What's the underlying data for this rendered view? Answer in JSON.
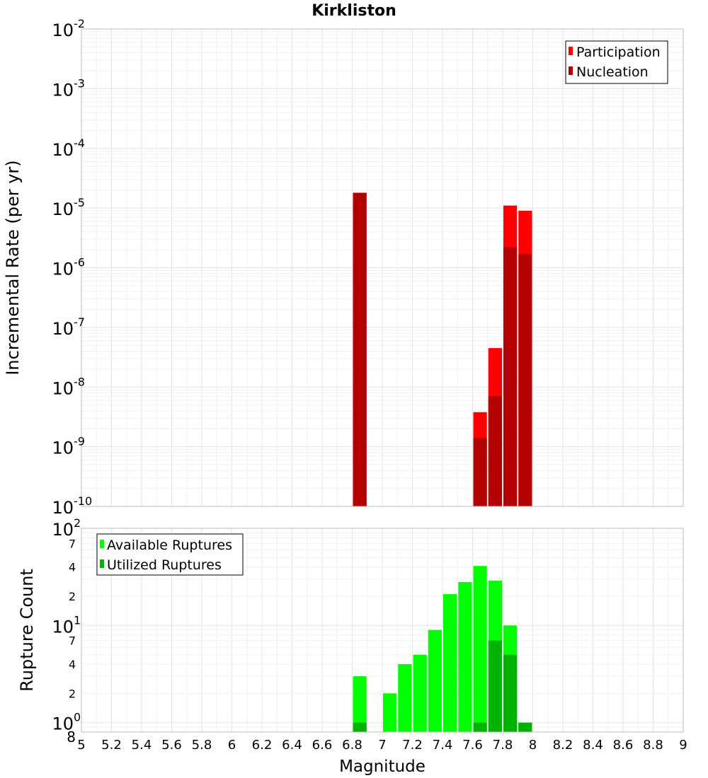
{
  "title": "Kirkliston",
  "colors": {
    "participation": "#ff0000",
    "nucleation": "#b30000",
    "available": "#00ff00",
    "utilized": "#00b300",
    "grid_major": "#e3e3e3",
    "grid_minor": "#f0f0f0",
    "frame": "#bbbbbb"
  },
  "chart_data": [
    {
      "type": "bar",
      "title": "Kirkliston",
      "xlabel": "Magnitude",
      "ylabel": "Incremental Rate (per yr)",
      "y_scale": "log",
      "xlim": [
        5,
        9
      ],
      "ylim": [
        1e-10,
        0.01
      ],
      "y_ticks": [
        {
          "base": "10",
          "exp": "-10"
        },
        {
          "base": "10",
          "exp": "-9"
        },
        {
          "base": "10",
          "exp": "-8"
        },
        {
          "base": "10",
          "exp": "-7"
        },
        {
          "base": "10",
          "exp": "-6"
        },
        {
          "base": "10",
          "exp": "-5"
        },
        {
          "base": "10",
          "exp": "-4"
        },
        {
          "base": "10",
          "exp": "-3"
        },
        {
          "base": "10",
          "exp": "-2"
        }
      ],
      "grid": true,
      "legend_position": "top-right",
      "series": [
        {
          "name": "Participation",
          "x": [
            6.85,
            7.65,
            7.75,
            7.85,
            7.95
          ],
          "values": [
            1.8e-05,
            3.8e-09,
            4.5e-08,
            1.1e-05,
            9e-06
          ]
        },
        {
          "name": "Nucleation",
          "x": [
            6.85,
            7.65,
            7.75,
            7.85,
            7.95
          ],
          "values": [
            1.8e-05,
            1.4e-09,
            7e-09,
            2.2e-06,
            1.7e-06
          ]
        }
      ]
    },
    {
      "type": "bar",
      "xlabel": "Magnitude",
      "ylabel": "Rupture Count",
      "y_scale": "log",
      "xlim": [
        5,
        9
      ],
      "ylim": [
        0.8,
        100
      ],
      "y_ticks": [
        {
          "base": "10",
          "exp": "0"
        },
        {
          "base": "10",
          "exp": "1"
        },
        {
          "base": "10",
          "exp": "2"
        }
      ],
      "y_minor_labels": [
        "8",
        "2",
        "4",
        "7",
        "2",
        "4",
        "7"
      ],
      "x_ticks": [
        "5",
        "5.2",
        "5.4",
        "5.6",
        "5.8",
        "6",
        "6.2",
        "6.4",
        "6.6",
        "6.8",
        "7",
        "7.2",
        "7.4",
        "7.6",
        "7.8",
        "8",
        "8.2",
        "8.4",
        "8.6",
        "8.8",
        "9"
      ],
      "grid": true,
      "legend_position": "top-left",
      "series": [
        {
          "name": "Available Ruptures",
          "x": [
            6.85,
            7.05,
            7.15,
            7.25,
            7.35,
            7.45,
            7.55,
            7.65,
            7.75,
            7.85,
            7.95
          ],
          "values": [
            3,
            2,
            4,
            5,
            9,
            21,
            28,
            41,
            29,
            10,
            1
          ]
        },
        {
          "name": "Utilized Ruptures",
          "x": [
            6.85,
            7.65,
            7.75,
            7.85,
            7.95
          ],
          "values": [
            1,
            1,
            7,
            5,
            1
          ]
        }
      ]
    }
  ]
}
